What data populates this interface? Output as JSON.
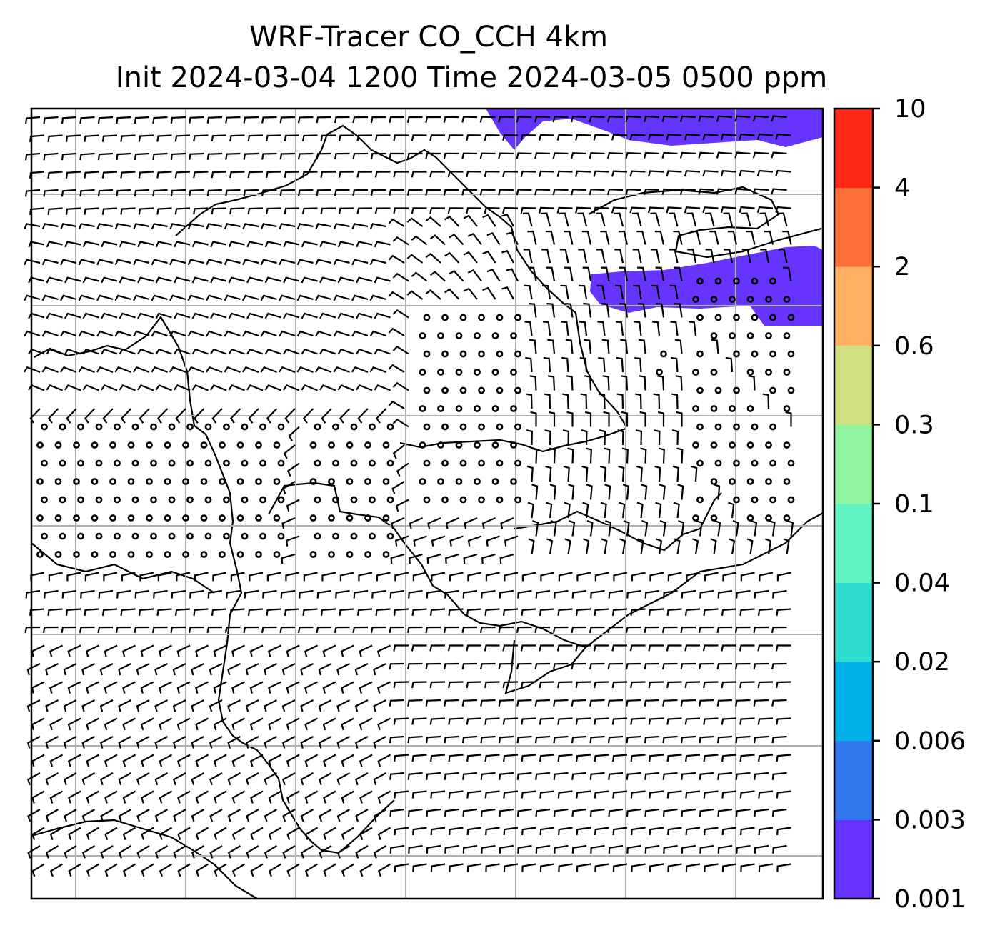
{
  "title": {
    "line1": "WRF-Tracer CO_CCH 4km",
    "line2": "Init 2024-03-04 1200 Time 2024-03-05 0500 ppm"
  },
  "colorbar": {
    "tick_labels": [
      "0.001",
      "0.003",
      "0.006",
      "0.02",
      "0.04",
      "0.1",
      "0.3",
      "0.6",
      "2",
      "4",
      "10"
    ],
    "colors": [
      "#6633ff",
      "#3377ee",
      "#00b0e8",
      "#2fdcd0",
      "#60f4c0",
      "#90f4a0",
      "#d0e080",
      "#ffb060",
      "#ff7038",
      "#ff2a18"
    ]
  },
  "map": {
    "fill_color": "#6633ff",
    "grid_color": "#b0b0b0",
    "barb_color": "#000000"
  }
}
